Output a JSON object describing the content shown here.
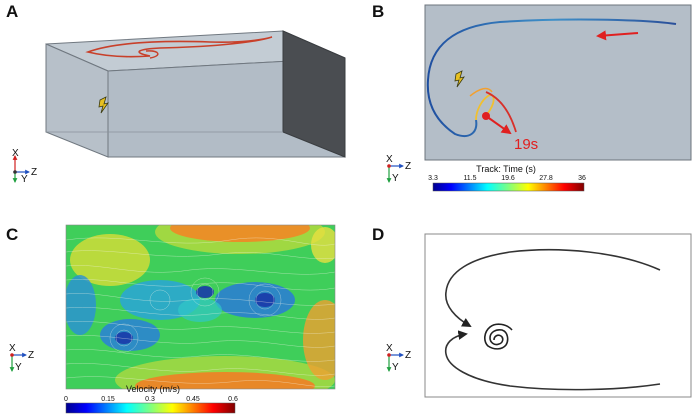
{
  "panels": {
    "a": {
      "letter": "A",
      "axes": {
        "x": "X",
        "y": "Y",
        "z": "Z"
      }
    },
    "b": {
      "letter": "B",
      "axes": {
        "x": "X",
        "y": "Y",
        "z": "Z"
      },
      "annotation": "19s",
      "colorbar": {
        "title": "Track: Time (s)",
        "ticks": [
          "3.3",
          "11.5",
          "19.6",
          "27.8",
          "36"
        ],
        "min": 3.3,
        "max": 36
      }
    },
    "c": {
      "letter": "C",
      "axes": {
        "x": "X",
        "y": "Y",
        "z": "Z"
      },
      "colorbar": {
        "title": "Velocity (m/s)",
        "ticks": [
          "0",
          "0.15",
          "0.3",
          "0.45",
          "0.6"
        ],
        "min": 0,
        "max": 0.6
      }
    },
    "d": {
      "letter": "D",
      "axes": {
        "x": "X",
        "y": "Y",
        "z": "Z"
      }
    }
  },
  "colors": {
    "tank_fill": "#b2bcc6",
    "tank_dark": "#4a4d51",
    "track_early": "#1f4fa0",
    "track_late": "#d32f1f",
    "annotation": "#e02020"
  }
}
